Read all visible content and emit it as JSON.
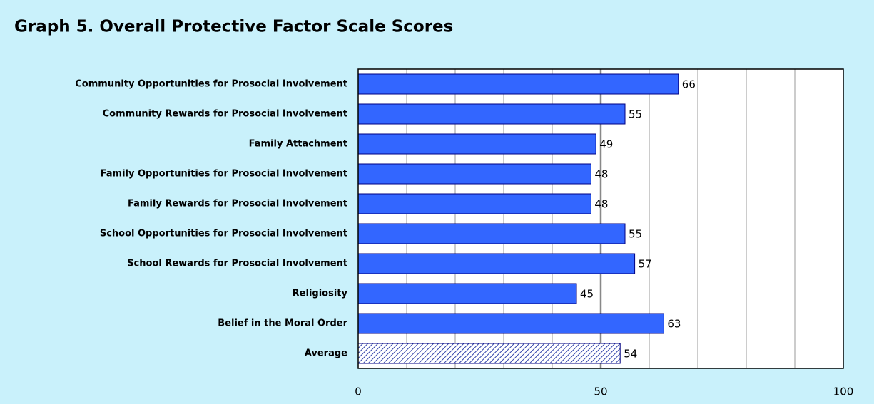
{
  "chart_data": {
    "type": "barh",
    "title": "Graph 5. Overall Protective Factor Scale Scores",
    "categories": [
      "Community Opportunities for Prosocial Involvement",
      "Community Rewards for Prosocial Involvement",
      "Family Attachment",
      "Family Opportunities for Prosocial Involvement",
      "Family Rewards for Prosocial Involvement",
      "School Opportunities for Prosocial Involvement",
      "School Rewards for Prosocial Involvement",
      "Religiosity",
      "Belief in the Moral Order",
      "Average"
    ],
    "values": [
      66,
      55,
      49,
      48,
      48,
      55,
      57,
      45,
      63,
      54
    ],
    "styles": [
      "solid",
      "solid",
      "solid",
      "solid",
      "solid",
      "solid",
      "solid",
      "solid",
      "solid",
      "hatched"
    ],
    "color": "#3366ff",
    "xlim": [
      0,
      100
    ],
    "xticks": [
      0,
      50,
      100
    ],
    "xgrid": [
      10,
      20,
      30,
      40,
      50,
      60,
      70,
      80,
      90
    ],
    "grid": true
  }
}
